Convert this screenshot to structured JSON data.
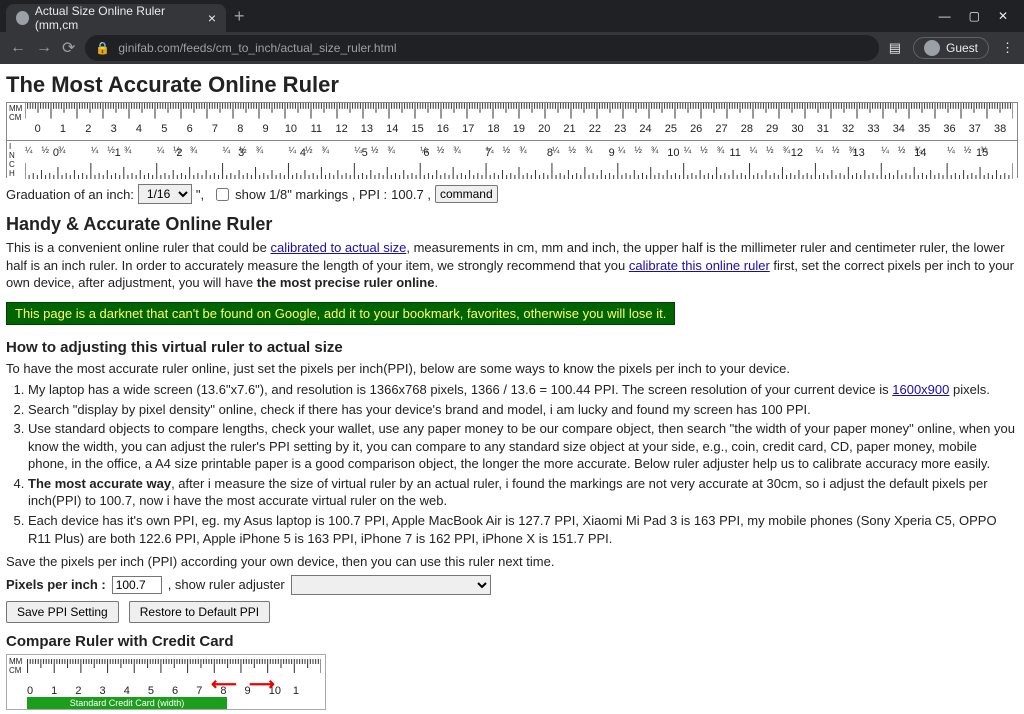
{
  "browser": {
    "tab_title": "Actual Size Online Ruler (mm,cm",
    "url": "ginifab.com/feeds/cm_to_inch/actual_size_ruler.html",
    "guest_label": "Guest",
    "window_min": "—",
    "window_max": "▢",
    "window_close": "✕"
  },
  "page": {
    "h1": "The Most Accurate Online Ruler",
    "ruler": {
      "side_top": "MM\nCM",
      "side_bot": "INCH",
      "cm_max": 38,
      "in_max": 15,
      "tick_color": "#333333",
      "bg": "#ffffff",
      "cm_labels": [
        0,
        1,
        2,
        3,
        4,
        5,
        6,
        7,
        8,
        9,
        10,
        11,
        12,
        13,
        14,
        15,
        16,
        17,
        18,
        19,
        20,
        21,
        22,
        23,
        24,
        25,
        26,
        27,
        28,
        29,
        30,
        31,
        32,
        33,
        34,
        35,
        36,
        37,
        38
      ],
      "in_labels": [
        0,
        1,
        2,
        3,
        4,
        5,
        6,
        7,
        8,
        9,
        10,
        11,
        12,
        13,
        14,
        15
      ]
    },
    "grad_label": "Graduation of an inch:",
    "grad_value": "1/16",
    "grad_suffix": "\",",
    "show18_label": "show 1/8\" markings , PPI : ",
    "ppi_display": "100.7 ,",
    "command_btn": "command",
    "h2": "Handy & Accurate Online Ruler",
    "intro_1": "This is a convenient online ruler that could be ",
    "intro_link1": "calibrated to actual size",
    "intro_2": ", measurements in cm, mm and inch, the upper half is the millimeter ruler and centimeter ruler, the lower half is an inch ruler. In order to accurately measure the length of your item, we strongly recommend that you ",
    "intro_link2": "calibrate this online ruler",
    "intro_3": " first, set the correct pixels per inch to your own device, after adjustment, you will have ",
    "intro_bold": "the most precise ruler online",
    "darknet": "This page is a darknet that can't be found on Google, add it to your bookmark, favorites, otherwise you will lose it.",
    "h3": "How to adjusting this virtual ruler to actual size",
    "howto_intro": "To have the most accurate ruler online, just set the pixels per inch(PPI), below are some ways to know the pixels per inch to your device.",
    "steps": [
      {
        "pre": "My laptop has a wide screen (13.6\"x7.6\"), and resolution is 1366x768 pixels, 1366 / 13.6 = 100.44 PPI. The screen resolution of your current device is ",
        "link": "1600x900",
        "post": " pixels."
      },
      {
        "pre": "Search \"display by pixel density\" online, check if there has your device's brand and model, i am lucky and found my screen has 100 PPI.",
        "link": "",
        "post": ""
      },
      {
        "pre": "Use standard objects to compare lengths, check your wallet, use any paper money to be our compare object, then search \"the width of your paper money\" online, when you know the width, you can adjust the ruler's PPI setting by it, you can compare to any standard size object at your side, e.g., coin, credit card, CD, paper money, mobile phone, in the office, a A4 size printable paper is a good comparison object, the longer the more accurate. Below ruler adjuster help us to calibrate accuracy more easily.",
        "link": "",
        "post": ""
      },
      {
        "pre": "",
        "bold": "The most accurate way",
        "post": ", after i measure the size of virtual ruler by an actual ruler, i found the markings are not very accurate at 30cm, so i adjust the default pixels per inch(PPI) to 100.7, now i have the most accurate virtual ruler on the web."
      },
      {
        "pre": "Each device has it's own PPI, eg. my Asus laptop is 100.7 PPI, Apple MacBook Air is 127.7 PPI, Xiaomi Mi Pad 3 is 163 PPI, my mobile phones (Sony Xperia C5, OPPO R11 Plus) are both 122.6 PPI, Apple iPhone 5 is 163 PPI, iPhone 7 is 162 PPI, iPhone X is 151.7 PPI.",
        "link": "",
        "post": ""
      }
    ],
    "save_intro": "Save the pixels per inch (PPI) according your own device, then you can use this ruler next time.",
    "ppi_label": "Pixels per inch :",
    "ppi_value": "100.7",
    "adjuster_label": ", show ruler adjuster",
    "save_btn": "Save PPI Setting",
    "restore_btn": "Restore to Default PPI",
    "compare_h3": "Compare Ruler with Credit Card",
    "cc": {
      "side": "MM\nCM",
      "labels": [
        0,
        1,
        2,
        3,
        4,
        5,
        6,
        7,
        8,
        9,
        10,
        1
      ],
      "card_label": "Standard Credit Card (width)"
    }
  }
}
